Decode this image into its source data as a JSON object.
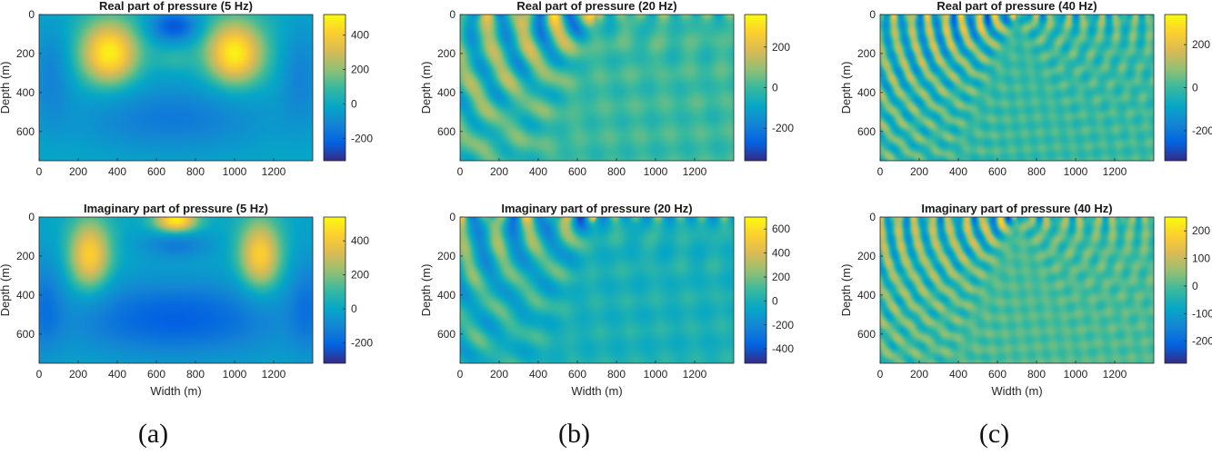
{
  "chart_data": [
    {
      "type": "heatmap",
      "title": "Real part of pressure  (5 Hz)",
      "ylabel": "Depth (m)",
      "xlabel": "",
      "xlim": [
        0,
        1400
      ],
      "ylim": [
        0,
        750
      ],
      "xticks": [
        "0",
        "200",
        "400",
        "600",
        "800",
        "1000",
        "1200"
      ],
      "yticks": [
        "0",
        "200",
        "400",
        "600"
      ],
      "colorbar": {
        "ticks": [
          "400",
          "200",
          "0",
          "-200"
        ],
        "tick_values": [
          400,
          200,
          0,
          -200
        ],
        "range": [
          -330,
          520
        ]
      },
      "pattern": {
        "freq": 5,
        "part": "real"
      }
    },
    {
      "type": "heatmap",
      "title": "Real part of pressure  (20 Hz)",
      "ylabel": "Depth (m)",
      "xlabel": "",
      "xlim": [
        0,
        1400
      ],
      "ylim": [
        0,
        750
      ],
      "xticks": [
        "0",
        "200",
        "400",
        "600",
        "800",
        "1000",
        "1200"
      ],
      "yticks": [
        "0",
        "200",
        "400",
        "600"
      ],
      "colorbar": {
        "ticks": [
          "200",
          "0",
          "-200"
        ],
        "tick_values": [
          200,
          0,
          -200
        ],
        "range": [
          -360,
          360
        ]
      },
      "pattern": {
        "freq": 20,
        "part": "real"
      }
    },
    {
      "type": "heatmap",
      "title": "Real part of pressure  (40 Hz)",
      "ylabel": "Depth (m)",
      "xlabel": "",
      "xlim": [
        0,
        1400
      ],
      "ylim": [
        0,
        750
      ],
      "xticks": [
        "0",
        "200",
        "400",
        "600",
        "800",
        "1000",
        "1200"
      ],
      "yticks": [
        "0",
        "200",
        "400",
        "600"
      ],
      "colorbar": {
        "ticks": [
          "200",
          "0",
          "-200"
        ],
        "tick_values": [
          200,
          0,
          -200
        ],
        "range": [
          -340,
          340
        ]
      },
      "pattern": {
        "freq": 40,
        "part": "real"
      }
    },
    {
      "type": "heatmap",
      "title": "Imaginary part of pressure  (5 Hz)",
      "ylabel": "Depth (m)",
      "xlabel": "Width (m)",
      "xlim": [
        0,
        1400
      ],
      "ylim": [
        0,
        750
      ],
      "xticks": [
        "0",
        "200",
        "400",
        "600",
        "800",
        "1000",
        "1200"
      ],
      "yticks": [
        "0",
        "200",
        "400",
        "600"
      ],
      "colorbar": {
        "ticks": [
          "400",
          "200",
          "0",
          "-200"
        ],
        "tick_values": [
          400,
          200,
          0,
          -200
        ],
        "range": [
          -320,
          540
        ]
      },
      "pattern": {
        "freq": 5,
        "part": "imag"
      }
    },
    {
      "type": "heatmap",
      "title": "Imaginary part of pressure  (20 Hz)",
      "ylabel": "Depth (m)",
      "xlabel": "Width (m)",
      "xlim": [
        0,
        1400
      ],
      "ylim": [
        0,
        750
      ],
      "xticks": [
        "0",
        "200",
        "400",
        "600",
        "800",
        "1000",
        "1200"
      ],
      "yticks": [
        "0",
        "200",
        "400",
        "600"
      ],
      "colorbar": {
        "ticks": [
          "600",
          "400",
          "200",
          "0",
          "-200",
          "-400"
        ],
        "tick_values": [
          600,
          400,
          200,
          0,
          -200,
          -400
        ],
        "range": [
          -520,
          700
        ]
      },
      "pattern": {
        "freq": 20,
        "part": "imag"
      }
    },
    {
      "type": "heatmap",
      "title": "Imaginary part of pressure  (40 Hz)",
      "ylabel": "Depth (m)",
      "xlabel": "Width (m)",
      "xlim": [
        0,
        1400
      ],
      "ylim": [
        0,
        750
      ],
      "xticks": [
        "0",
        "200",
        "400",
        "600",
        "800",
        "1000",
        "1200"
      ],
      "yticks": [
        "0",
        "200",
        "400",
        "600"
      ],
      "colorbar": {
        "ticks": [
          "200",
          "100",
          "0",
          "-100",
          "-200"
        ],
        "tick_values": [
          200,
          100,
          0,
          -100,
          -200
        ],
        "range": [
          -280,
          250
        ]
      },
      "pattern": {
        "freq": 40,
        "part": "imag"
      }
    }
  ],
  "captions": [
    "(a)",
    "(b)",
    "(c)"
  ],
  "colormap": [
    "#352a87",
    "#0363e1",
    "#1485d4",
    "#06a7c6",
    "#38b99e",
    "#92bf73",
    "#d9ba56",
    "#fcce2e",
    "#f9fb0e"
  ]
}
